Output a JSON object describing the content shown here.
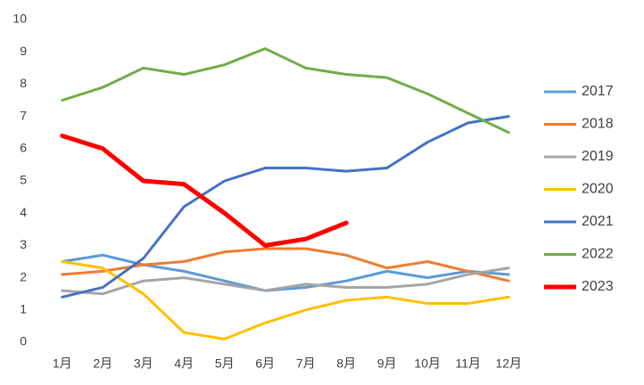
{
  "chart_data": {
    "type": "line",
    "categories": [
      "1月",
      "2月",
      "3月",
      "4月",
      "5月",
      "6月",
      "7月",
      "8月",
      "9月",
      "10月",
      "11月",
      "12月"
    ],
    "series": [
      {
        "name": "2017",
        "color": "#5B9BD5",
        "line_width": 3,
        "values": [
          2.5,
          2.7,
          2.4,
          2.2,
          1.9,
          1.6,
          1.7,
          1.9,
          2.2,
          2.0,
          2.2,
          2.1
        ]
      },
      {
        "name": "2018",
        "color": "#ED7D31",
        "line_width": 3,
        "values": [
          2.1,
          2.2,
          2.4,
          2.5,
          2.8,
          2.9,
          2.9,
          2.7,
          2.3,
          2.5,
          2.2,
          1.9
        ]
      },
      {
        "name": "2019",
        "color": "#A5A5A5",
        "line_width": 3,
        "values": [
          1.6,
          1.5,
          1.9,
          2.0,
          1.8,
          1.6,
          1.8,
          1.7,
          1.7,
          1.8,
          2.1,
          2.3
        ]
      },
      {
        "name": "2020",
        "color": "#FFC000",
        "line_width": 3,
        "values": [
          2.5,
          2.3,
          1.5,
          0.3,
          0.1,
          0.6,
          1.0,
          1.3,
          1.4,
          1.2,
          1.2,
          1.4
        ]
      },
      {
        "name": "2021",
        "color": "#4472C4",
        "line_width": 3,
        "values": [
          1.4,
          1.7,
          2.6,
          4.2,
          5.0,
          5.4,
          5.4,
          5.3,
          5.4,
          6.2,
          6.8,
          7.0
        ]
      },
      {
        "name": "2022",
        "color": "#70AD47",
        "line_width": 3,
        "values": [
          7.5,
          7.9,
          8.5,
          8.3,
          8.6,
          9.1,
          8.5,
          8.3,
          8.2,
          7.7,
          7.1,
          6.5
        ]
      },
      {
        "name": "2023",
        "color": "#FF0000",
        "line_width": 5,
        "values": [
          6.4,
          6.0,
          5.0,
          4.9,
          4.0,
          3.0,
          3.2,
          3.7,
          null,
          null,
          null,
          null
        ]
      }
    ],
    "ylim": [
      0,
      10
    ],
    "yticks": [
      0,
      1,
      2,
      3,
      4,
      5,
      6,
      7,
      8,
      9,
      10
    ],
    "grid": false,
    "legend": "right"
  }
}
